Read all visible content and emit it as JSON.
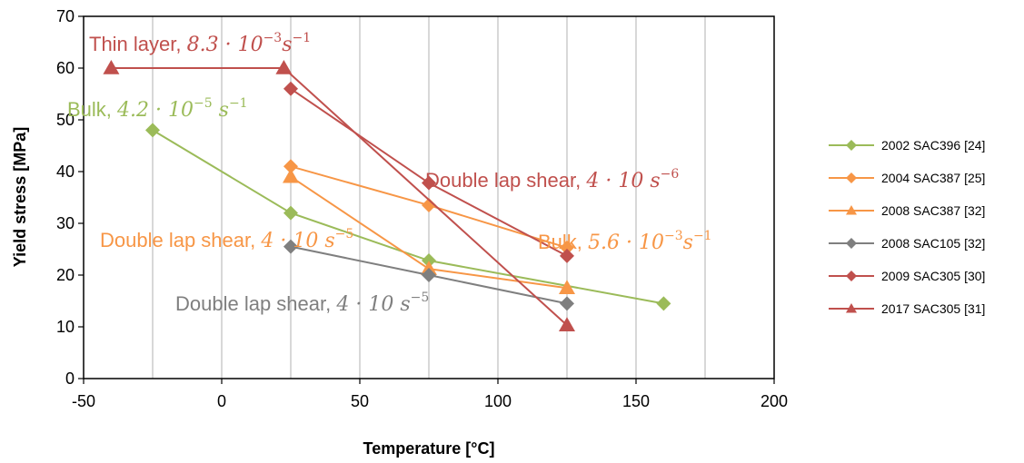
{
  "chart_data": {
    "type": "line",
    "xlabel": "Temperature [°C]",
    "ylabel": "Yield stress [MPa]",
    "xlim": [
      -50,
      200
    ],
    "ylim": [
      0,
      70
    ],
    "xticks": [
      "-50",
      "0",
      "50",
      "100",
      "150",
      "200"
    ],
    "yticks": [
      "0",
      "10",
      "20",
      "30",
      "40",
      "50",
      "60",
      "70"
    ],
    "grid": "vertical",
    "legend_position": "right",
    "series": [
      {
        "name": "2002 SAC396 [24]",
        "color": "#9BBB59",
        "marker": "diamond",
        "x": [
          -25,
          25,
          75,
          160
        ],
        "y": [
          48,
          32,
          22.8,
          14.5
        ]
      },
      {
        "name": "2004 SAC387 [25]",
        "color": "#F79646",
        "marker": "diamond",
        "x": [
          25,
          75,
          125
        ],
        "y": [
          41,
          33.5,
          25.3
        ]
      },
      {
        "name": "2008 SAC387 [32]",
        "color": "#F79646",
        "marker": "triangle",
        "x": [
          25,
          75,
          125
        ],
        "y": [
          39,
          21.2,
          17.5
        ]
      },
      {
        "name": "2008 SAC105 [32]",
        "color": "#7F7F7F",
        "marker": "diamond",
        "x": [
          25,
          75,
          125
        ],
        "y": [
          25.5,
          20,
          14.5
        ]
      },
      {
        "name": "2009 SAC305 [30]",
        "color": "#C0504D",
        "marker": "diamond",
        "x": [
          25,
          75,
          125
        ],
        "y": [
          56,
          37.8,
          23.7
        ]
      },
      {
        "name": "2017 SAC305 [31]",
        "color": "#C0504D",
        "marker": "triangle",
        "x": [
          -40,
          22.5,
          125
        ],
        "y": [
          60,
          60,
          10.3
        ]
      }
    ],
    "annotations": [
      {
        "text": "Thin layer, ",
        "math": "8.3 · 10",
        "sup": "−3",
        "math2": "s",
        "sup2": "−1",
        "color": "#C0504D"
      },
      {
        "text": "Bulk, ",
        "math": "4.2  · 10",
        "sup": "−5",
        "math2": " s",
        "sup2": "−1",
        "color": "#9BBB59"
      },
      {
        "text": "Double lap shear, ",
        "math": "4 · 10 ",
        "sup": "",
        "math2": "s",
        "sup2": "−6",
        "color": "#C0504D"
      },
      {
        "text": "Double lap shear, ",
        "math": "4 · 10 ",
        "sup": "",
        "math2": "s",
        "sup2": "−5",
        "color": "#F79646"
      },
      {
        "text": "Bulk, ",
        "math": "5.6 · 10",
        "sup": "−3",
        "math2": "s",
        "sup2": "−1",
        "color": "#F79646"
      },
      {
        "text": "Double lap shear, ",
        "math": "4 · 10 ",
        "sup": "",
        "math2": "s",
        "sup2": "−5",
        "color": "#7F7F7F"
      }
    ]
  }
}
